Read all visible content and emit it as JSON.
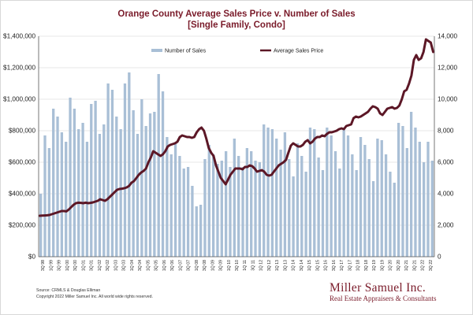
{
  "title_line1": "Orange County Average Sales Price v. Number of Sales",
  "title_line2": "[Single Family, Condo]",
  "source_line1": "Source: CRMLS & Douglas Elliman",
  "source_line2": "Copyright 2022 Miller Samuel Inc.  All world wide rights reserved.",
  "brand_name": "Miller Samuel Inc.",
  "brand_tagline": "Real Estate Appraisers & Consultants",
  "colors": {
    "bar": "#a9bfd6",
    "line": "#5c1726",
    "title": "#7a1b2a",
    "grid": "#cfcfcf"
  },
  "chart_data": {
    "type": "bar+line",
    "x_labels": [
      "3Q 98",
      "1Q 99",
      "3Q 99",
      "1Q 00",
      "3Q 00",
      "1Q 01",
      "3Q 01",
      "1Q 02",
      "3Q 02",
      "1Q 03",
      "3Q 03",
      "1Q 04",
      "3Q 04",
      "1Q 05",
      "3Q 05",
      "1Q 06",
      "3Q 06",
      "1Q 07",
      "3Q 07",
      "1Q 08",
      "3Q 08",
      "1Q 09",
      "3Q 09",
      "1Q 10",
      "3Q 10",
      "1Q 11",
      "3Q 11",
      "1Q 12",
      "3Q 12",
      "1Q 13",
      "3Q 13",
      "1Q 14",
      "3Q 14",
      "1Q 15",
      "3Q 15",
      "1Q 16",
      "3Q 16",
      "1Q 17",
      "3Q 17",
      "1Q 18",
      "3Q 18",
      "1Q 19",
      "3Q 19",
      "1Q 20",
      "3Q 20",
      "1Q 21",
      "3Q 21",
      "1Q 22",
      "3Q 22"
    ],
    "left_axis": {
      "min": 0,
      "max": 1400000,
      "ticks": [
        "$0",
        "$200,000",
        "$400,000",
        "$600,000",
        "$800,000",
        "$1,000,000",
        "$1,200,000",
        "$1,400,000"
      ]
    },
    "right_axis": {
      "min": 0,
      "max": 14000,
      "ticks": [
        "0",
        "2,000",
        "4,000",
        "6,000",
        "8,000",
        "10,000",
        "12,000",
        "14,000"
      ]
    },
    "grid": true,
    "legend": "top",
    "series": [
      {
        "name": "Number of Sales",
        "type": "bar",
        "axis": "right",
        "values": [
          4000,
          7700,
          6900,
          9400,
          8900,
          7900,
          7300,
          10100,
          9400,
          8100,
          8500,
          7300,
          9700,
          9900,
          7800,
          8400,
          11000,
          10600,
          8900,
          8100,
          11000,
          11700,
          9300,
          7800,
          10000,
          8300,
          9100,
          9200,
          11600,
          10500,
          7600,
          6500,
          7200,
          6400,
          5600,
          5700,
          4500,
          3200,
          3300,
          6200,
          7100,
          6500,
          5900,
          6100,
          6700,
          5700,
          7500,
          6400,
          5700,
          6900,
          6700,
          6100,
          6000,
          8400,
          8200,
          8100,
          7500,
          6800,
          7900,
          6200,
          5100,
          7200,
          6400,
          5400,
          8200,
          8100,
          6300,
          5500,
          8200,
          7700,
          6700,
          5600,
          8100,
          7700,
          6500,
          5500,
          7600,
          7100,
          6200,
          4800,
          7500,
          7400,
          6500,
          5400,
          4700,
          8500,
          8300,
          6900,
          9200,
          8200,
          7300,
          6000,
          7300,
          6100
        ],
        "note": "one bar per month, Jul 1998 – Sep 2022 (approximate)"
      },
      {
        "name": "Average Sales Price",
        "type": "line",
        "axis": "left",
        "values": [
          260000,
          261000,
          262000,
          263000,
          265000,
          270000,
          275000,
          280000,
          285000,
          290000,
          290000,
          288000,
          300000,
          315000,
          330000,
          340000,
          343000,
          342000,
          340000,
          343000,
          340000,
          342000,
          345000,
          350000,
          355000,
          365000,
          360000,
          355000,
          365000,
          380000,
          395000,
          410000,
          425000,
          430000,
          432000,
          435000,
          440000,
          450000,
          470000,
          480000,
          500000,
          520000,
          535000,
          545000,
          560000,
          600000,
          630000,
          670000,
          660000,
          650000,
          640000,
          650000,
          670000,
          700000,
          710000,
          715000,
          720000,
          730000,
          760000,
          770000,
          765000,
          760000,
          760000,
          755000,
          760000,
          790000,
          810000,
          820000,
          800000,
          750000,
          690000,
          660000,
          640000,
          580000,
          540000,
          500000,
          480000,
          460000,
          490000,
          520000,
          540000,
          560000,
          560000,
          560000,
          555000,
          570000,
          570000,
          580000,
          575000,
          560000,
          540000,
          545000,
          550000,
          540000,
          520000,
          515000,
          520000,
          540000,
          560000,
          580000,
          590000,
          600000,
          615000,
          660000,
          705000,
          720000,
          710000,
          700000,
          700000,
          710000,
          730000,
          740000,
          720000,
          730000,
          750000,
          760000,
          760000,
          770000,
          765000,
          780000,
          790000,
          790000,
          795000,
          800000,
          810000,
          815000,
          810000,
          830000,
          835000,
          840000,
          880000,
          890000,
          885000,
          890000,
          900000,
          910000,
          920000,
          940000,
          955000,
          950000,
          940000,
          910000,
          900000,
          920000,
          940000,
          945000,
          950000,
          940000,
          945000,
          960000,
          1000000,
          1050000,
          1060000,
          1100000,
          1150000,
          1250000,
          1280000,
          1250000,
          1260000,
          1300000,
          1380000,
          1370000,
          1360000,
          1300000
        ],
        "note": "approximately monthly, Jul 1998 – Sep 2022"
      }
    ]
  }
}
